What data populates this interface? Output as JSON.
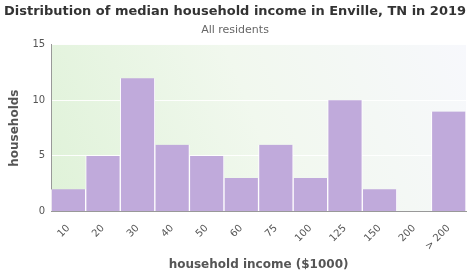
{
  "chart_data": {
    "type": "bar",
    "title": "Distribution of median household income in Enville, TN in 2019",
    "subtitle": "All residents",
    "x_label": "household income ($1000)",
    "y_label": "households",
    "categories": [
      "10",
      "20",
      "30",
      "40",
      "50",
      "60",
      "75",
      "100",
      "125",
      "150",
      "200",
      "> 200"
    ],
    "values": [
      2,
      5,
      12,
      6,
      5,
      3,
      6,
      3,
      10,
      2,
      0,
      9
    ],
    "color": "#c0aadb",
    "ylim": [
      0,
      15
    ],
    "yticks": [
      0,
      5,
      10,
      15
    ],
    "grid": true
  }
}
